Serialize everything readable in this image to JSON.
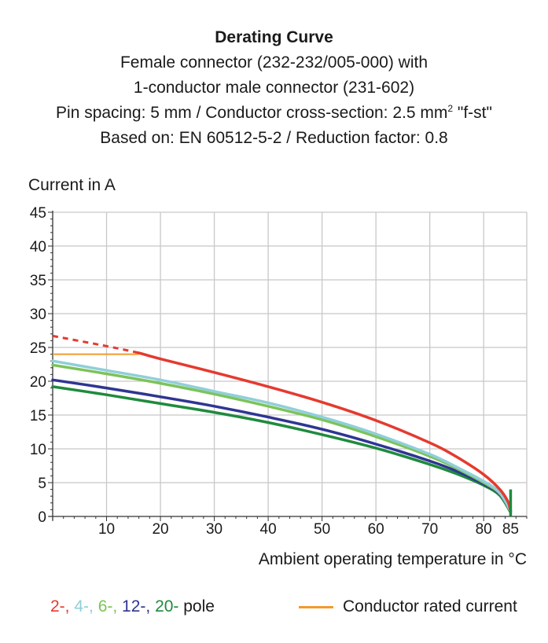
{
  "chart_data": {
    "type": "line",
    "title": "Derating Curve",
    "subtitle_lines": [
      "Female connector (232-232/005-000) with",
      "1-conductor male connector (231-602)"
    ],
    "subtitle_line3_prefix": "Pin spacing: 5 mm / Conductor cross-section: 2.5 mm",
    "subtitle_line3_sup": "2",
    "subtitle_line3_suffix": " \"f-st\"",
    "subtitle_line4": "Based on: EN 60512-5-2 / Reduction factor: 0.8",
    "ylabel": "Current in A",
    "xlabel": "Ambient operating temperature in °C",
    "xlim": [
      0,
      88
    ],
    "ylim": [
      0,
      45
    ],
    "x_ticks": [
      "10",
      "20",
      "30",
      "40",
      "50",
      "60",
      "70",
      "80",
      "85"
    ],
    "x_tick_values": [
      10,
      20,
      30,
      40,
      50,
      60,
      70,
      80,
      85
    ],
    "y_ticks": [
      "0",
      "5",
      "10",
      "15",
      "20",
      "25",
      "30",
      "35",
      "40",
      "45"
    ],
    "y_tick_values": [
      0,
      5,
      10,
      15,
      20,
      25,
      30,
      35,
      40,
      45
    ],
    "grid": true,
    "series": [
      {
        "name": "2-",
        "color": "#e53a2f",
        "dashed_until_x": 16,
        "points": [
          [
            0,
            26.7
          ],
          [
            10,
            25.2
          ],
          [
            16,
            24.2
          ],
          [
            20,
            23.3
          ],
          [
            30,
            21.3
          ],
          [
            40,
            19.2
          ],
          [
            50,
            16.9
          ],
          [
            60,
            14.2
          ],
          [
            70,
            10.9
          ],
          [
            75,
            8.8
          ],
          [
            80,
            6.2
          ],
          [
            83,
            4.0
          ],
          [
            84.5,
            2.2
          ],
          [
            85,
            0.8
          ]
        ]
      },
      {
        "name": "4-",
        "color": "#8fcfd9",
        "points": [
          [
            0,
            23.0
          ],
          [
            10,
            21.6
          ],
          [
            20,
            20.2
          ],
          [
            30,
            18.5
          ],
          [
            40,
            16.8
          ],
          [
            50,
            14.7
          ],
          [
            60,
            12.2
          ],
          [
            70,
            9.2
          ],
          [
            75,
            7.3
          ],
          [
            80,
            5.2
          ],
          [
            83,
            3.5
          ],
          [
            85,
            0.8
          ]
        ]
      },
      {
        "name": "6-",
        "color": "#7cc35a",
        "points": [
          [
            0,
            22.4
          ],
          [
            10,
            21.1
          ],
          [
            20,
            19.7
          ],
          [
            30,
            18.1
          ],
          [
            40,
            16.3
          ],
          [
            50,
            14.3
          ],
          [
            60,
            11.8
          ],
          [
            70,
            8.9
          ],
          [
            75,
            7.1
          ],
          [
            80,
            5.0
          ],
          [
            83,
            3.4
          ],
          [
            85,
            0.8
          ]
        ]
      },
      {
        "name": "12-",
        "color": "#2e3592",
        "points": [
          [
            0,
            20.2
          ],
          [
            10,
            19.0
          ],
          [
            20,
            17.7
          ],
          [
            30,
            16.3
          ],
          [
            40,
            14.7
          ],
          [
            50,
            12.9
          ],
          [
            60,
            10.7
          ],
          [
            70,
            8.2
          ],
          [
            75,
            6.7
          ],
          [
            80,
            4.8
          ],
          [
            83,
            3.3
          ],
          [
            85,
            0.8
          ]
        ]
      },
      {
        "name": "20-",
        "color": "#1f8a3e",
        "points": [
          [
            0,
            19.2
          ],
          [
            10,
            18.0
          ],
          [
            20,
            16.7
          ],
          [
            30,
            15.4
          ],
          [
            40,
            13.9
          ],
          [
            50,
            12.1
          ],
          [
            60,
            10.1
          ],
          [
            70,
            7.7
          ],
          [
            75,
            6.3
          ],
          [
            80,
            4.6
          ],
          [
            83,
            3.1
          ],
          [
            85,
            0.6
          ]
        ]
      }
    ],
    "rated_current": {
      "name": "Conductor rated current",
      "color": "#f39a2e",
      "value": 24,
      "x_range": [
        0,
        16
      ]
    },
    "legend_pole_suffix": " pole",
    "legend_separator": ", "
  }
}
